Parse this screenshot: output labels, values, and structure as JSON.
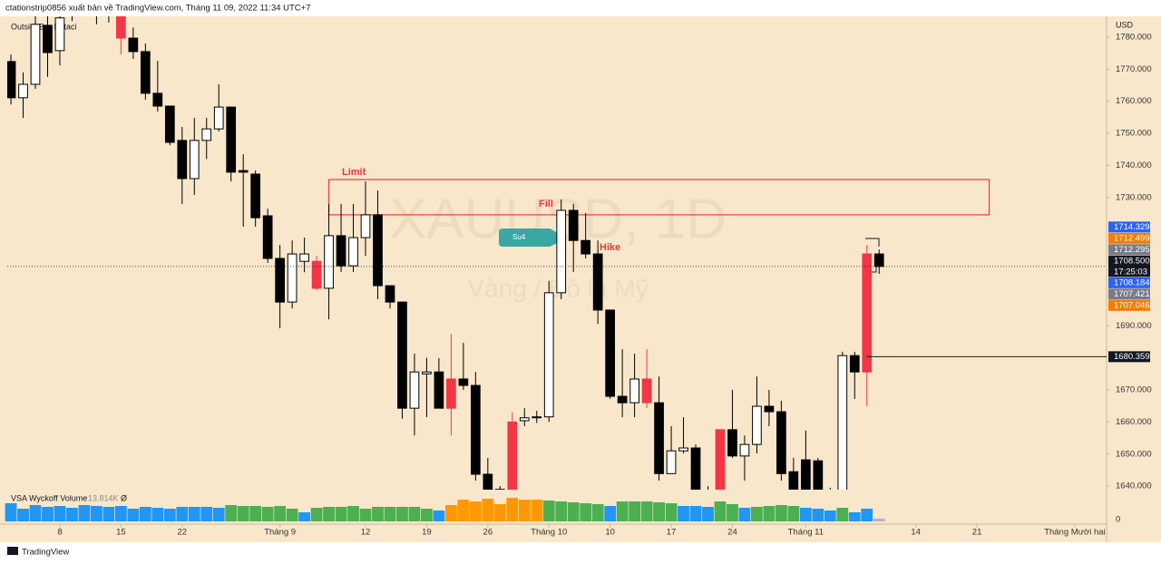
{
  "header": "ctationstrip0856 xuất bản về TradingView.com, Tháng 11 09, 2022 11:34 UTC+7",
  "footer": "TradingView",
  "chart_data": {
    "type": "candlestick",
    "watermark": "XAUUSD, 1D",
    "watermark_subtitle": "Vàng / Đô la Mỹ",
    "indicator": "OutsideBar Kataci",
    "currency": "USD",
    "grid": false,
    "open": [
      1772.4,
      1761.1,
      1765.3,
      1783.7,
      1775.8,
      1788,
      1794,
      1791,
      1790,
      1786.5,
      1779.7,
      1775.5,
      1762.5,
      1758.5,
      1747.8,
      1735.9,
      1747.8,
      1751.4,
      1758.2,
      1738.4,
      1737.3,
      1724.3,
      1711,
      1697.4,
      1710.1,
      1710.1,
      1701.7,
      1718.1,
      1708.7,
      1717.5,
      1724.6,
      1702.5,
      1697.4,
      1664.3,
      1675,
      1675.6,
      1673.4,
      1673.4,
      1671.4,
      1643.7,
      1639,
      1630,
      1660.4,
      1661.3,
      1661.6,
      1700.3,
      1726,
      1716.6,
      1712.4,
      1694.9,
      1668,
      1666,
      1673.4,
      1666,
      1643.9,
      1651,
      1651.9,
      1638,
      1636,
      1657.6,
      1649.4,
      1653,
      1664.9,
      1663.2,
      1644.5,
      1648.2,
      1647.9,
      1638,
      1636,
      1680.7,
      1675.6,
      1712.4
    ],
    "high": [
      1774.6,
      1769,
      1787,
      1786.5,
      1787,
      1797,
      1799,
      1796,
      1798,
      1789,
      1783,
      1778,
      1772.6,
      1758.5,
      1752,
      1754.8,
      1754.8,
      1765.3,
      1758.2,
      1743.5,
      1738.4,
      1726.5,
      1715.2,
      1716.6,
      1717.5,
      1711.8,
      1728,
      1728,
      1728,
      1735,
      1732.2,
      1702.5,
      1697.4,
      1681.3,
      1680,
      1679.9,
      1687.5,
      1684.7,
      1675.6,
      1648.8,
      1640,
      1663,
      1664.3,
      1663.5,
      1704,
      1729.4,
      1728,
      1725.2,
      1716.6,
      1694.9,
      1682.7,
      1681.3,
      1682.7,
      1674.2,
      1658.7,
      1661.5,
      1653,
      1640,
      1657.6,
      1670,
      1655.8,
      1674.2,
      1670,
      1666.6,
      1648.8,
      1657.3,
      1648.8,
      1639.5,
      1681.9,
      1681.9,
      1715.2,
      1713.8
    ],
    "low": [
      1759,
      1754.8,
      1763.9,
      1767.6,
      1771.2,
      1785,
      1788,
      1784,
      1784.6,
      1774.6,
      1773.2,
      1760.5,
      1756.8,
      1746.3,
      1728,
      1730.8,
      1742,
      1750.6,
      1735,
      1720.9,
      1720.9,
      1709.6,
      1689.2,
      1695.4,
      1706.7,
      1701.1,
      1692,
      1706.8,
      1706.8,
      1711.8,
      1698.3,
      1695.4,
      1661,
      1655.8,
      1661.5,
      1664.3,
      1655.8,
      1670,
      1641.7,
      1633,
      1630,
      1628,
      1658.7,
      1659.7,
      1660,
      1698.3,
      1706.8,
      1711,
      1690.6,
      1667.2,
      1661.5,
      1661.5,
      1664.3,
      1641.7,
      1643.9,
      1650.2,
      1636,
      1630,
      1634,
      1648.8,
      1641.7,
      1650.2,
      1658.7,
      1641.7,
      1635,
      1634,
      1635,
      1630,
      1634,
      1667.2,
      1664.9,
      1706.2
    ],
    "close": [
      1761.1,
      1765.3,
      1784,
      1775.2,
      1786,
      1794,
      1791,
      1790,
      1793,
      1779.7,
      1775.5,
      1762.5,
      1758.5,
      1747.2,
      1735.9,
      1747.8,
      1751.4,
      1758.2,
      1737.9,
      1737.9,
      1723.7,
      1711,
      1697.4,
      1712.4,
      1712.4,
      1701.7,
      1718.1,
      1708.7,
      1717.5,
      1724.6,
      1702.5,
      1697.4,
      1664.3,
      1675.6,
      1675.6,
      1664.3,
      1664.3,
      1671.4,
      1643.7,
      1639,
      1636,
      1660,
      1661.3,
      1661.6,
      1700.3,
      1726,
      1716.6,
      1712.4,
      1694.9,
      1668,
      1666,
      1673.4,
      1666,
      1643.9,
      1651,
      1651.9,
      1638,
      1636,
      1657.6,
      1649.4,
      1653,
      1664.9,
      1663.2,
      1643.9,
      1638.9,
      1638,
      1638,
      1637,
      1680.7,
      1675.6,
      1712.4,
      1708.5
    ],
    "colors": [
      "#000000",
      "#ffffff",
      "#ffffff",
      "#000000",
      "#ffffff",
      "#ffffff",
      "#000000",
      "#000000",
      "#ffffff",
      "#f23645",
      "#000000",
      "#000000",
      "#000000",
      "#000000",
      "#000000",
      "#ffffff",
      "#ffffff",
      "#ffffff",
      "#000000",
      "#000000",
      "#000000",
      "#000000",
      "#000000",
      "#ffffff",
      "#ffffff",
      "#f23645",
      "#ffffff",
      "#000000",
      "#ffffff",
      "#ffffff",
      "#000000",
      "#000000",
      "#000000",
      "#ffffff",
      "#ffffff",
      "#000000",
      "#f23645",
      "#000000",
      "#000000",
      "#000000",
      "#000000",
      "#f23645",
      "#ffffff",
      "#ffffff",
      "#ffffff",
      "#ffffff",
      "#000000",
      "#000000",
      "#000000",
      "#000000",
      "#000000",
      "#ffffff",
      "#f23645",
      "#000000",
      "#ffffff",
      "#ffffff",
      "#000000",
      "#000000",
      "#f23645",
      "#000000",
      "#ffffff",
      "#ffffff",
      "#000000",
      "#000000",
      "#000000",
      "#000000",
      "#000000",
      "#000000",
      "#ffffff",
      "#000000",
      "#f23645",
      "#000000"
    ],
    "xlim": [
      -0.3,
      89.6
    ],
    "xticks": [
      {
        "value": 4,
        "label": "8"
      },
      {
        "value": 9,
        "label": "15"
      },
      {
        "value": 14,
        "label": "22"
      },
      {
        "value": 22,
        "label": "Tháng 9"
      },
      {
        "value": 29,
        "label": "12"
      },
      {
        "value": 34,
        "label": "19"
      },
      {
        "value": 39,
        "label": "26"
      },
      {
        "value": 44,
        "label": "Tháng 10"
      },
      {
        "value": 49,
        "label": "10"
      },
      {
        "value": 54,
        "label": "17"
      },
      {
        "value": 59,
        "label": "24"
      },
      {
        "value": 65,
        "label": "Tháng 11"
      },
      {
        "value": 74,
        "label": "14"
      },
      {
        "value": 79,
        "label": "21"
      },
      {
        "value": 87,
        "label": "Tháng Mười hai"
      }
    ],
    "ylim": [
      1638.9,
      1786.5
    ],
    "yticks": [
      {
        "value": 1640,
        "label": "1640.000"
      },
      {
        "value": 1650,
        "label": "1650.000"
      },
      {
        "value": 1660,
        "label": "1660.000"
      },
      {
        "value": 1670,
        "label": "1670.000"
      },
      {
        "value": 1690,
        "label": "1690.000"
      },
      {
        "value": 1730,
        "label": "1730.000"
      },
      {
        "value": 1740,
        "label": "1740.000"
      },
      {
        "value": 1750,
        "label": "1750.000"
      },
      {
        "value": 1760,
        "label": "1760.000"
      },
      {
        "value": 1770,
        "label": "1770.000"
      },
      {
        "value": 1780,
        "label": "1780.000"
      }
    ],
    "price_labels": [
      {
        "value": 1714.329,
        "color": "#2962ff"
      },
      {
        "value": 1712.499,
        "color": "#f57c00"
      },
      {
        "value": 1712.295,
        "color": "#787b86"
      },
      {
        "value": 1708.5,
        "label": "1708.500",
        "countdown": "17:25:03",
        "color": "#131722"
      },
      {
        "value": 1708.184,
        "color": "#2962ff"
      },
      {
        "value": 1707.421,
        "color": "#787b86"
      },
      {
        "value": 1707.046,
        "color": "#f57c00"
      }
    ],
    "hline": {
      "value": 1680.359,
      "from": 70,
      "color": "#131722"
    },
    "zone": {
      "label": "Limit",
      "x": [
        26,
        80
      ],
      "y": [
        1724.6,
        1735.6
      ],
      "color": "#f23645"
    },
    "annotations": [
      "Fill",
      "Hike",
      "Su4"
    ],
    "volume": {
      "name": "VSA Wyckoff Volume",
      "symbol": "Ø",
      "ylim": [
        0,
        180
      ],
      "yticks": [
        0
      ],
      "values": [
        90,
        63,
        81,
        72,
        76.5,
        67.5,
        81,
        76.5,
        72,
        76.5,
        63,
        72,
        67.5,
        63,
        72,
        72,
        72,
        67.5,
        81,
        76.5,
        76.5,
        72,
        76.5,
        63,
        45,
        67.5,
        72,
        72,
        76.5,
        63,
        72,
        72,
        72,
        72,
        63,
        54,
        81,
        108,
        99,
        112.5,
        85.5,
        117,
        108,
        108,
        103.5,
        99,
        94.5,
        90,
        85.5,
        76.5,
        99,
        99,
        99,
        94.5,
        90,
        76.5,
        76.5,
        72,
        99,
        85.5,
        67.5,
        72,
        76.5,
        81,
        76.5,
        67.5,
        63,
        54,
        67.5,
        45,
        63,
        13.814
      ],
      "value_labels": [
        null,
        null,
        null,
        null,
        null,
        null,
        null,
        null,
        null,
        null,
        null,
        null,
        null,
        null,
        null,
        null,
        null,
        null,
        null,
        null,
        null,
        null,
        null,
        null,
        null,
        null,
        null,
        null,
        null,
        null,
        null,
        null,
        null,
        null,
        null,
        null,
        null,
        null,
        null,
        null,
        null,
        null,
        null,
        null,
        null,
        null,
        null,
        null,
        null,
        null,
        null,
        null,
        null,
        null,
        null,
        null,
        null,
        null,
        null,
        null,
        null,
        null,
        null,
        null,
        null,
        null,
        null,
        null,
        null,
        null,
        null,
        "13.814K"
      ],
      "colors": [
        "#2196f3",
        "#2196f3",
        "#2196f3",
        "#2196f3",
        "#2196f3",
        "#2196f3",
        "#2196f3",
        "#2196f3",
        "#2196f3",
        "#2196f3",
        "#2196f3",
        "#2196f3",
        "#2196f3",
        "#2196f3",
        "#2196f3",
        "#2196f3",
        "#2196f3",
        "#2196f3",
        "#4caf50",
        "#4caf50",
        "#4caf50",
        "#4caf50",
        "#4caf50",
        "#4caf50",
        "#2196f3",
        "#4caf50",
        "#4caf50",
        "#4caf50",
        "#4caf50",
        "#4caf50",
        "#4caf50",
        "#4caf50",
        "#4caf50",
        "#4caf50",
        "#4caf50",
        "#2196f3",
        "#ff9800",
        "#ff9800",
        "#ff9800",
        "#ff9800",
        "#ff9800",
        "#ff9800",
        "#ff9800",
        "#ff9800",
        "#4caf50",
        "#4caf50",
        "#4caf50",
        "#4caf50",
        "#4caf50",
        "#2196f3",
        "#4caf50",
        "#4caf50",
        "#4caf50",
        "#4caf50",
        "#4caf50",
        "#2196f3",
        "#2196f3",
        "#2196f3",
        "#4caf50",
        "#4caf50",
        "#2196f3",
        "#4caf50",
        "#4caf50",
        "#4caf50",
        "#4caf50",
        "#2196f3",
        "#2196f3",
        "#2196f3",
        "#4caf50",
        "#2196f3",
        "#2196f3",
        "#b2b5be"
      ]
    }
  }
}
